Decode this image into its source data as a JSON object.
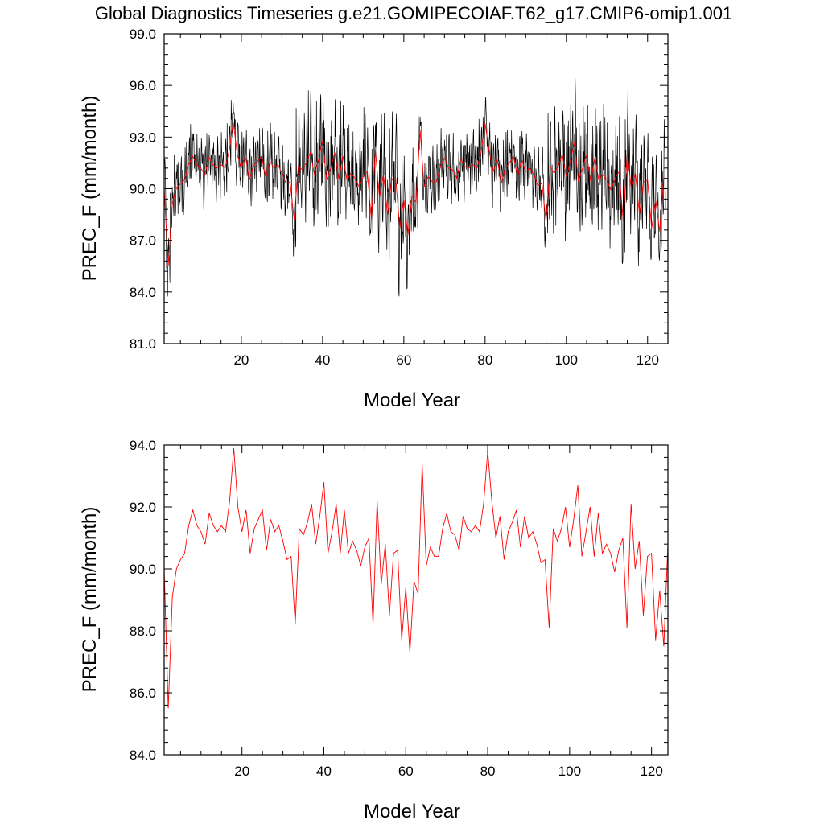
{
  "title": "Global Diagnostics Timeseries g.e21.GOMIPECOIAF.T62_g17.CMIP6-omip1.001",
  "colors": {
    "monthly": "#000000",
    "annual": "#ff0000",
    "frame": "#000000"
  },
  "chart_data": [
    {
      "type": "line",
      "xlabel": "Model Year",
      "ylabel": "PREC_F (mm/month)",
      "xlim": [
        1,
        125
      ],
      "ylim": [
        81.0,
        99.0
      ],
      "x_ticks": [
        20,
        40,
        60,
        80,
        100,
        120
      ],
      "x_ticks_text": [
        "20",
        "40",
        "60",
        "80",
        "100",
        "120"
      ],
      "y_ticks": [
        81.0,
        84.0,
        87.0,
        90.0,
        93.0,
        96.0,
        99.0
      ],
      "y_ticks_text": [
        "81.0",
        "84.0",
        "87.0",
        "90.0",
        "93.0",
        "96.0",
        "99.0"
      ],
      "series": [
        {
          "kind": "monthly",
          "color": "#000000",
          "months_per_year": 12
        },
        {
          "kind": "annual",
          "color": "#ff0000"
        }
      ]
    },
    {
      "type": "line",
      "xlabel": "Model Year",
      "ylabel": "PREC_F (mm/month)",
      "xlim": [
        1,
        124
      ],
      "ylim": [
        84.0,
        94.0
      ],
      "x_ticks": [
        20,
        40,
        60,
        80,
        100,
        120
      ],
      "x_ticks_text": [
        "20",
        "40",
        "60",
        "80",
        "100",
        "120"
      ],
      "y_ticks": [
        84.0,
        86.0,
        88.0,
        90.0,
        92.0,
        94.0
      ],
      "y_ticks_text": [
        "84.0",
        "86.0",
        "88.0",
        "90.0",
        "92.0",
        "94.0"
      ],
      "series": [
        {
          "kind": "annual",
          "color": "#ff0000"
        }
      ]
    }
  ],
  "annual_x": [
    1,
    2,
    3,
    4,
    5,
    6,
    7,
    8,
    9,
    10,
    11,
    12,
    13,
    14,
    15,
    16,
    17,
    18,
    19,
    20,
    21,
    22,
    23,
    24,
    25,
    26,
    27,
    28,
    29,
    30,
    31,
    32,
    33,
    34,
    35,
    36,
    37,
    38,
    39,
    40,
    41,
    42,
    43,
    44,
    45,
    46,
    47,
    48,
    49,
    50,
    51,
    52,
    53,
    54,
    55,
    56,
    57,
    58,
    59,
    60,
    61,
    62,
    63,
    64,
    65,
    66,
    67,
    68,
    69,
    70,
    71,
    72,
    73,
    74,
    75,
    76,
    77,
    78,
    79,
    80,
    81,
    82,
    83,
    84,
    85,
    86,
    87,
    88,
    89,
    90,
    91,
    92,
    93,
    94,
    95,
    96,
    97,
    98,
    99,
    100,
    101,
    102,
    103,
    104,
    105,
    106,
    107,
    108,
    109,
    110,
    111,
    112,
    113,
    114,
    115,
    116,
    117,
    118,
    119,
    120,
    121,
    122,
    123,
    124
  ],
  "annual_values": [
    90.0,
    85.5,
    89.1,
    90.0,
    90.3,
    90.5,
    91.4,
    91.9,
    91.4,
    91.2,
    90.8,
    91.8,
    91.4,
    91.2,
    91.4,
    91.2,
    92.2,
    93.9,
    92.0,
    91.2,
    91.9,
    90.5,
    91.3,
    91.6,
    91.9,
    90.6,
    91.6,
    91.2,
    91.4,
    90.9,
    90.3,
    90.4,
    88.2,
    91.3,
    91.1,
    91.5,
    92.1,
    90.8,
    91.7,
    92.8,
    90.5,
    91.2,
    92.1,
    90.5,
    91.9,
    90.5,
    90.9,
    90.6,
    90.1,
    90.7,
    91.0,
    88.2,
    92.2,
    89.5,
    90.8,
    88.5,
    90.5,
    90.6,
    87.7,
    89.4,
    87.3,
    89.6,
    89.2,
    93.4,
    90.1,
    90.7,
    90.4,
    90.4,
    91.3,
    91.8,
    91.2,
    91.1,
    90.6,
    91.7,
    91.3,
    91.2,
    91.4,
    91.2,
    92.1,
    93.8,
    92.2,
    91.0,
    91.7,
    90.3,
    91.2,
    91.5,
    91.9,
    90.7,
    91.7,
    91.0,
    91.2,
    90.8,
    90.2,
    90.3,
    88.1,
    91.3,
    90.9,
    91.3,
    92.0,
    90.7,
    91.6,
    92.7,
    90.4,
    91.2,
    92.0,
    90.4,
    91.8,
    90.5,
    90.8,
    90.5,
    89.9,
    90.6,
    91.0,
    88.1,
    92.1,
    90.0,
    90.9,
    88.5,
    90.4,
    90.5,
    87.7,
    89.3,
    87.5,
    90.8
  ]
}
